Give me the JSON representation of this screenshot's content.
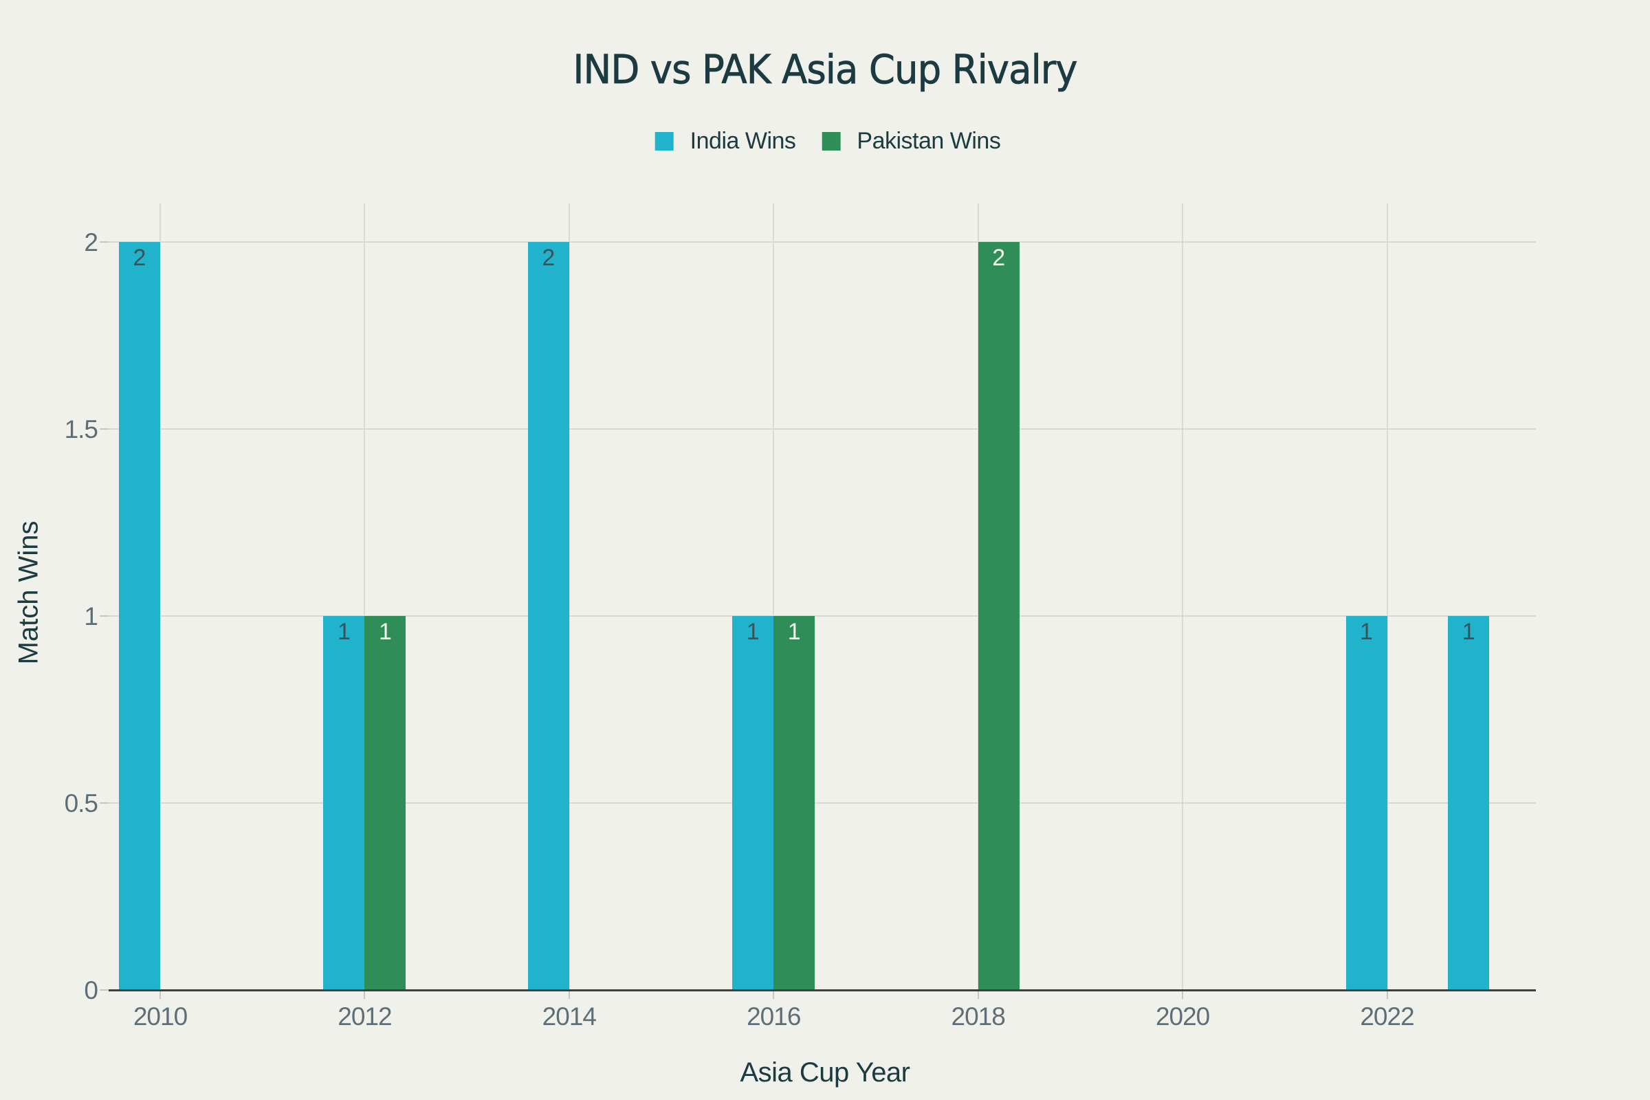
{
  "title": "IND vs PAK Asia Cup Rivalry",
  "chart_data": {
    "type": "bar",
    "x": [
      2010,
      2012,
      2014,
      2016,
      2018,
      2022,
      2023
    ],
    "series": [
      {
        "name": "India Wins",
        "color": "#22b3cc",
        "label_color": "#3e5058",
        "values": [
          2,
          1,
          2,
          1,
          0,
          1,
          1
        ]
      },
      {
        "name": "Pakistan Wins",
        "color": "#2f8e58",
        "label_color": "#f3f4ee",
        "values": [
          0,
          1,
          0,
          1,
          2,
          0,
          0
        ]
      }
    ],
    "xlabel": "Asia Cup Year",
    "ylabel": "Match Wins",
    "xticks": [
      2010,
      2012,
      2014,
      2016,
      2018,
      2020,
      2022
    ],
    "yticks": [
      0,
      0.5,
      1,
      1.5,
      2
    ],
    "ylim": [
      0,
      2.1
    ],
    "xlim": [
      2009.5,
      2023.45
    ],
    "grid": true,
    "legend_position": "top-center",
    "background": "#f0f1ea"
  }
}
